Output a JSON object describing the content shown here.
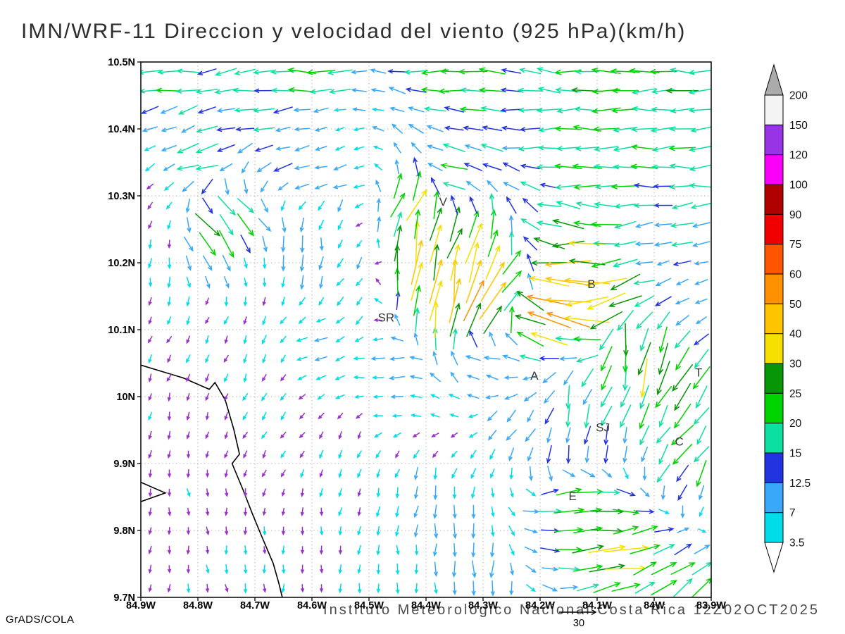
{
  "title": "IMN/WRF-11 Direccion y velocidad del viento (925 hPa)(km/h)",
  "footer": {
    "caption": "Instituto Meteorologico Nacional Costa Rica  12Z02OCT2025",
    "credit": "GrADS/COLA"
  },
  "chart_data": {
    "type": "vector_field",
    "title": "IMN/WRF-11 Direccion y velocidad del viento (925 hPa)(km/h)",
    "units": "km/h",
    "x_axis": {
      "ticks": [
        "84.9W",
        "84.8W",
        "84.7W",
        "84.6W",
        "84.5W",
        "84.4W",
        "84.3W",
        "84.2W",
        "84.1W",
        "84W",
        "83.9W"
      ],
      "range_west_deg": [
        84.9,
        83.9
      ]
    },
    "y_axis": {
      "ticks": [
        "9.7N",
        "9.8N",
        "9.9N",
        "10N",
        "10.1N",
        "10.2N",
        "10.3N",
        "10.4N",
        "10.5N"
      ],
      "range_north_deg": [
        9.7,
        10.5
      ]
    },
    "grid_spacing_deg": 0.1,
    "colorbar": {
      "levels_asc": [
        3.5,
        7,
        12.5,
        15,
        20,
        25,
        30,
        40,
        50,
        60,
        75,
        90,
        100,
        120,
        150,
        200
      ],
      "colors_asc": [
        "#00dce8",
        "#39a8f8",
        "#2233e0",
        "#0be0a0",
        "#00d400",
        "#069606",
        "#f5e000",
        "#ffc400",
        "#ff9000",
        "#ff5500",
        "#f00000",
        "#b00000",
        "#fa00fa",
        "#9933e6",
        "#f4f4f4"
      ],
      "above_max_color": "#ababab",
      "below_min_arrow_color": "#9930cc",
      "under_cap_color": "#ffffff"
    },
    "reference_vector": {
      "label": "30",
      "speed_kmh": 30
    },
    "stations": [
      {
        "label": "V",
        "lon_w": 84.37,
        "lat_n": 10.285
      },
      {
        "label": "B",
        "lon_w": 84.11,
        "lat_n": 10.162
      },
      {
        "label": "SR",
        "lon_w": 84.47,
        "lat_n": 10.112
      },
      {
        "label": "A",
        "lon_w": 84.21,
        "lat_n": 10.025
      },
      {
        "label": "SJ",
        "lon_w": 84.09,
        "lat_n": 9.948
      },
      {
        "label": "C",
        "lon_w": 83.956,
        "lat_n": 9.927
      },
      {
        "label": "E",
        "lon_w": 84.143,
        "lat_n": 9.845
      },
      {
        "label": "T",
        "lon_w": 83.922,
        "lat_n": 10.03
      }
    ],
    "coastline_segments_lonw_latn": [
      [
        [
          84.9,
          10.047
        ],
        [
          84.826,
          10.028
        ],
        [
          84.78,
          10.011
        ],
        [
          84.77,
          10.021
        ],
        [
          84.752,
          9.995
        ],
        [
          84.737,
          9.951
        ],
        [
          84.727,
          9.914
        ],
        [
          84.74,
          9.9
        ],
        [
          84.721,
          9.861
        ],
        [
          84.705,
          9.826
        ],
        [
          84.688,
          9.791
        ],
        [
          84.668,
          9.751
        ],
        [
          84.658,
          9.721
        ],
        [
          84.652,
          9.7
        ]
      ],
      [
        [
          84.9,
          9.872
        ],
        [
          84.857,
          9.856
        ],
        [
          84.9,
          9.843
        ]
      ]
    ],
    "vector_grid": {
      "cols": 30,
      "rows": 28
    },
    "flow_control_points_lonw_latn_dirdeg_speed": [
      [
        84.85,
        10.48,
        185,
        20
      ],
      [
        84.6,
        10.485,
        180,
        22
      ],
      [
        84.35,
        10.48,
        180,
        22
      ],
      [
        84.1,
        10.48,
        180,
        23
      ],
      [
        83.92,
        10.47,
        180,
        24
      ],
      [
        84.7,
        10.435,
        183,
        17
      ],
      [
        84.3,
        10.44,
        181,
        19
      ],
      [
        84.0,
        10.44,
        180,
        20
      ],
      [
        84.85,
        10.39,
        200,
        8
      ],
      [
        84.55,
        10.38,
        215,
        4
      ],
      [
        84.2,
        10.385,
        180,
        16
      ],
      [
        83.95,
        10.375,
        182,
        18
      ],
      [
        84.8,
        10.35,
        195,
        22
      ],
      [
        84.65,
        10.345,
        192,
        13
      ],
      [
        84.35,
        10.335,
        180,
        19
      ],
      [
        84.1,
        10.33,
        180,
        21
      ],
      [
        83.92,
        10.325,
        184,
        19
      ],
      [
        84.55,
        10.325,
        188,
        11
      ],
      [
        84.88,
        10.29,
        225,
        3
      ],
      [
        84.85,
        10.25,
        250,
        3
      ],
      [
        84.7,
        10.18,
        260,
        3
      ],
      [
        84.86,
        10.08,
        240,
        3
      ],
      [
        84.68,
        10.05,
        255,
        4
      ],
      [
        84.78,
        10.12,
        235,
        3
      ],
      [
        84.77,
        10.245,
        310,
        30
      ],
      [
        84.72,
        10.27,
        318,
        22
      ],
      [
        84.62,
        10.22,
        272,
        17
      ],
      [
        84.55,
        10.28,
        262,
        8
      ],
      [
        84.5,
        10.2,
        252,
        10
      ],
      [
        84.52,
        10.12,
        235,
        8
      ],
      [
        84.42,
        10.29,
        62,
        30
      ],
      [
        84.43,
        10.21,
        82,
        52
      ],
      [
        84.37,
        10.16,
        86,
        46
      ],
      [
        84.3,
        10.15,
        55,
        78
      ],
      [
        84.33,
        10.22,
        70,
        35
      ],
      [
        84.25,
        10.17,
        30,
        24
      ],
      [
        84.15,
        10.18,
        185,
        48
      ],
      [
        84.08,
        10.15,
        200,
        42
      ],
      [
        84.18,
        10.13,
        168,
        50
      ],
      [
        84.16,
        10.12,
        160,
        60
      ],
      [
        83.95,
        10.28,
        185,
        15
      ],
      [
        83.93,
        10.15,
        200,
        6
      ],
      [
        84.0,
        10.2,
        192,
        8
      ],
      [
        84.6,
        10.07,
        192,
        8
      ],
      [
        84.45,
        10.05,
        186,
        10
      ],
      [
        84.3,
        10.06,
        180,
        12
      ],
      [
        84.15,
        10.07,
        176,
        13
      ],
      [
        84.15,
        10.0,
        262,
        17
      ],
      [
        84.1,
        9.97,
        252,
        19
      ],
      [
        84.02,
        10.04,
        255,
        34
      ],
      [
        83.96,
        10.0,
        240,
        27
      ],
      [
        84.05,
        10.07,
        280,
        30
      ],
      [
        83.95,
        9.92,
        228,
        22
      ],
      [
        83.92,
        9.88,
        242,
        24
      ],
      [
        84.08,
        9.93,
        252,
        12
      ],
      [
        84.8,
        9.85,
        282,
        3
      ],
      [
        84.6,
        9.8,
        272,
        3
      ],
      [
        84.75,
        9.72,
        280,
        4
      ],
      [
        84.45,
        9.76,
        272,
        5
      ],
      [
        84.85,
        9.95,
        262,
        3
      ],
      [
        84.55,
        9.92,
        258,
        4
      ],
      [
        84.35,
        9.78,
        270,
        10
      ],
      [
        84.3,
        9.72,
        266,
        12
      ],
      [
        84.4,
        9.85,
        262,
        8
      ],
      [
        84.16,
        9.85,
        20,
        28
      ],
      [
        84.05,
        9.76,
        10,
        36
      ],
      [
        84.1,
        9.83,
        5,
        32
      ],
      [
        83.97,
        9.75,
        35,
        22
      ],
      [
        83.93,
        9.72,
        42,
        24
      ],
      [
        84.0,
        9.7,
        32,
        20
      ],
      [
        83.91,
        9.85,
        252,
        5
      ],
      [
        84.18,
        9.9,
        256,
        17
      ],
      [
        84.25,
        9.95,
        232,
        10
      ]
    ]
  }
}
